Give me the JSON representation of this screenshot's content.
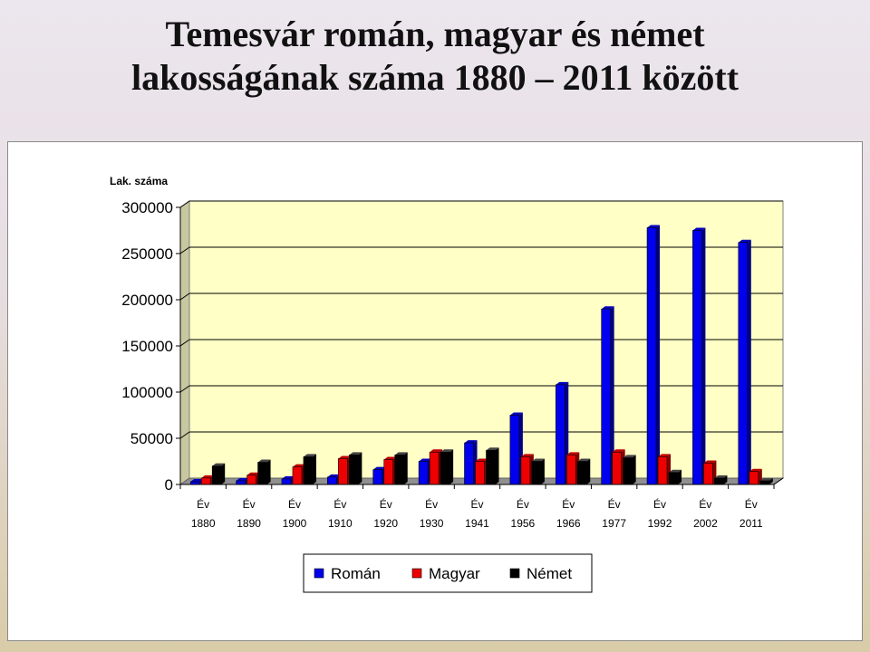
{
  "slide": {
    "title_line1": "Temesvár román, magyar és német",
    "title_line2": "lakosságának száma 1880 – 2011 között"
  },
  "chart_data": {
    "type": "bar",
    "ylabel": "Lak. száma",
    "ylim": [
      0,
      300000
    ],
    "yticks": [
      "0",
      "50000",
      "100000",
      "150000",
      "200000",
      "250000",
      "300000"
    ],
    "category_prefix": "Év",
    "categories": [
      "1880",
      "1890",
      "1900",
      "1910",
      "1920",
      "1930",
      "1941",
      "1956",
      "1966",
      "1977",
      "1992",
      "2002",
      "2011"
    ],
    "series": [
      {
        "name": "Román",
        "color": "#0000ee",
        "values": [
          3000,
          4000,
          6000,
          8000,
          16000,
          25000,
          45000,
          75000,
          108000,
          190000,
          278000,
          275000,
          262000
        ]
      },
      {
        "name": "Magyar",
        "color": "#ee0000",
        "values": [
          7000,
          10000,
          19000,
          28000,
          27000,
          35000,
          25000,
          30000,
          32000,
          35000,
          30000,
          23000,
          14000
        ]
      },
      {
        "name": "Német",
        "color": "#000000",
        "values": [
          20000,
          24000,
          30000,
          32000,
          32000,
          35000,
          37000,
          25000,
          25000,
          29000,
          13000,
          7000,
          4000
        ]
      }
    ],
    "grid": true,
    "legend_position": "bottom"
  }
}
